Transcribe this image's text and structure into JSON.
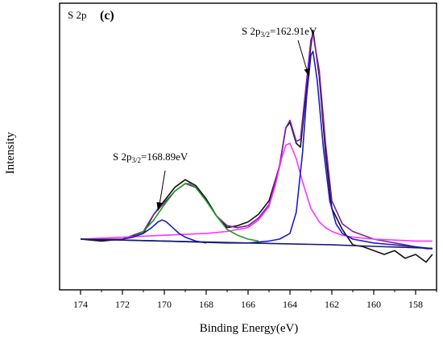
{
  "chart_data": {
    "type": "line",
    "title": "S 2p",
    "panel_label": "(c)",
    "xlabel": "Binding Energy(eV)",
    "ylabel": "Intensity",
    "x_reversed": true,
    "xlim": [
      175,
      157
    ],
    "xticks": [
      174,
      172,
      170,
      168,
      166,
      164,
      162,
      160,
      158
    ],
    "y_tick_labels_shown": false,
    "grid": false,
    "legend": "none",
    "annotations": [
      {
        "base": "S 2p",
        "sub": "3/2",
        "value": "=168.89eV",
        "points_to_x": 169.6
      },
      {
        "base": "S 2p",
        "sub": "3/2",
        "value": "=162.91eV",
        "points_to_x": 162.8
      }
    ],
    "series": [
      {
        "role": "raw spectrum",
        "color": "#111111",
        "x": [
          174.0,
          173.0,
          172.0,
          171.0,
          170.5,
          170.0,
          169.5,
          169.0,
          168.5,
          168.0,
          167.5,
          167.0,
          166.5,
          166.0,
          165.5,
          165.0,
          164.5,
          164.2,
          164.0,
          163.7,
          163.5,
          163.0,
          162.9,
          162.6,
          162.3,
          162.0,
          161.5,
          161.0,
          160.5,
          160.0,
          159.5,
          159.0,
          158.5,
          158.0,
          157.5,
          157.2
        ],
        "values": [
          0.0,
          -0.01,
          0.0,
          0.03,
          0.13,
          0.2,
          0.27,
          0.31,
          0.28,
          0.21,
          0.12,
          0.06,
          0.07,
          0.09,
          0.13,
          0.2,
          0.38,
          0.58,
          0.61,
          0.5,
          0.48,
          1.01,
          1.09,
          0.85,
          0.45,
          0.16,
          0.05,
          -0.03,
          -0.04,
          -0.06,
          -0.08,
          -0.06,
          -0.1,
          -0.08,
          -0.12,
          -0.08
        ]
      },
      {
        "role": "envelope fit",
        "color": "#7b1fa2",
        "x": [
          174.0,
          173.0,
          172.0,
          171.0,
          170.5,
          170.0,
          169.5,
          169.0,
          168.5,
          168.0,
          167.5,
          167.0,
          166.5,
          166.0,
          165.5,
          165.0,
          164.5,
          164.2,
          164.0,
          163.7,
          163.5,
          163.0,
          162.9,
          162.6,
          162.3,
          162.0,
          161.5,
          161.0,
          160.5,
          160.0,
          159.5,
          159.0,
          158.5,
          158.0,
          157.5,
          157.2
        ],
        "values": [
          0.0,
          0.0,
          0.0,
          0.04,
          0.13,
          0.19,
          0.25,
          0.29,
          0.27,
          0.2,
          0.12,
          0.07,
          0.06,
          0.07,
          0.11,
          0.18,
          0.38,
          0.58,
          0.62,
          0.51,
          0.52,
          1.04,
          1.07,
          0.88,
          0.5,
          0.2,
          0.08,
          0.04,
          0.02,
          0.0,
          -0.01,
          -0.02,
          -0.03,
          -0.04,
          -0.05,
          -0.05
        ]
      },
      {
        "role": "fitted component",
        "color": "#ff33ff",
        "x": [
          174.0,
          170.0,
          168.0,
          167.0,
          166.0,
          165.5,
          165.0,
          164.7,
          164.4,
          164.2,
          164.0,
          163.7,
          163.4,
          163.0,
          162.6,
          162.3,
          162.0,
          161.5,
          161.0,
          160.0,
          158.0,
          157.2
        ],
        "values": [
          0.0,
          0.02,
          0.03,
          0.04,
          0.06,
          0.1,
          0.17,
          0.28,
          0.42,
          0.49,
          0.5,
          0.42,
          0.3,
          0.16,
          0.09,
          0.06,
          0.04,
          0.02,
          0.01,
          0.0,
          -0.01,
          -0.01
        ]
      },
      {
        "role": "fitted component",
        "color": "#1a1acc",
        "x": [
          174.0,
          170.0,
          167.0,
          166.0,
          165.0,
          164.5,
          164.0,
          163.7,
          163.4,
          163.2,
          163.0,
          162.9,
          162.7,
          162.4,
          162.1,
          161.8,
          161.5,
          161.0,
          160.0,
          158.0,
          157.2
        ],
        "values": [
          0.0,
          -0.01,
          -0.02,
          -0.02,
          -0.01,
          0.0,
          0.03,
          0.14,
          0.45,
          0.75,
          0.96,
          0.98,
          0.83,
          0.47,
          0.2,
          0.08,
          0.03,
          0.0,
          -0.02,
          -0.04,
          -0.05
        ]
      },
      {
        "role": "fitted component",
        "color": "#1d9a1d",
        "x": [
          172.0,
          171.5,
          171.0,
          170.5,
          170.0,
          169.5,
          169.0,
          168.8,
          168.5,
          168.0,
          167.5,
          167.0,
          166.5,
          166.0,
          165.5
        ],
        "values": [
          0.0,
          0.01,
          0.04,
          0.1,
          0.18,
          0.25,
          0.29,
          0.29,
          0.27,
          0.2,
          0.12,
          0.05,
          0.02,
          0.0,
          -0.01
        ]
      },
      {
        "role": "fitted component",
        "color": "#1a1acc",
        "x": [
          172.0,
          171.5,
          171.0,
          170.6,
          170.3,
          170.1,
          169.9,
          169.6,
          169.3,
          169.0,
          168.5,
          168.0
        ],
        "values": [
          0.0,
          0.01,
          0.03,
          0.06,
          0.09,
          0.1,
          0.09,
          0.06,
          0.03,
          0.01,
          -0.01,
          -0.02
        ]
      },
      {
        "role": "background",
        "color": "#1a1a66",
        "x": [
          174.0,
          172.0,
          170.0,
          168.0,
          166.0,
          164.0,
          162.0,
          160.0,
          158.0,
          157.2
        ],
        "values": [
          0.0,
          -0.005,
          -0.01,
          -0.015,
          -0.02,
          -0.025,
          -0.03,
          -0.038,
          -0.045,
          -0.048
        ]
      }
    ]
  }
}
